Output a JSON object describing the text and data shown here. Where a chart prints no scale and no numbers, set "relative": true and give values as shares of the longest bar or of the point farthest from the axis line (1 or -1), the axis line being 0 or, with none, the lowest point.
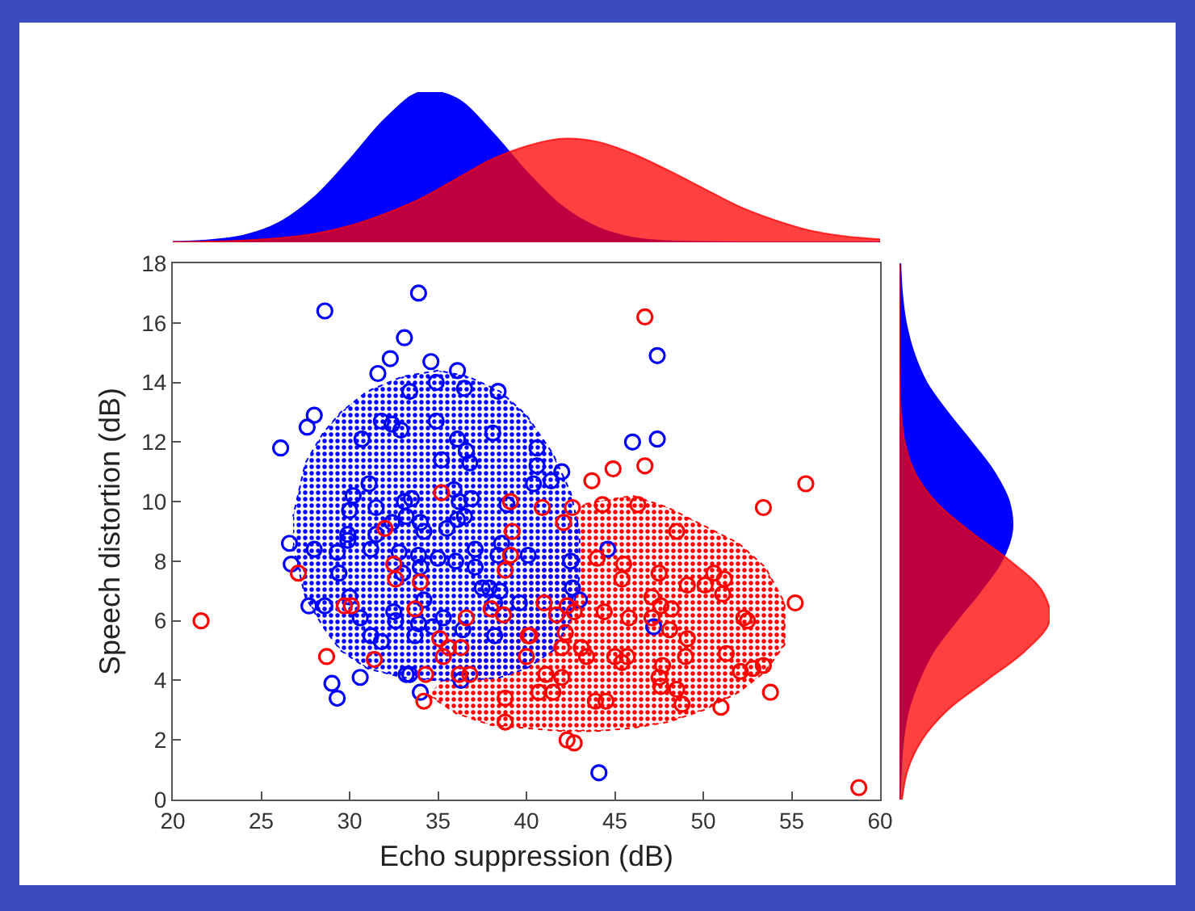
{
  "chart_data": [
    {
      "type": "area",
      "relative": true,
      "tick_labels": false,
      "xlim": [
        20,
        60
      ],
      "x": [
        20,
        22,
        24,
        26,
        28,
        30,
        32,
        34,
        36,
        38,
        40,
        42,
        44,
        46,
        48,
        50,
        52,
        54,
        56,
        58,
        60
      ],
      "series": [
        {
          "color": "#0000ff",
          "values": [
            0.003,
            0.013,
            0.045,
            0.13,
            0.3,
            0.55,
            0.82,
            1,
            0.96,
            0.74,
            0.47,
            0.24,
            0.1,
            0.03,
            0.008,
            0.002,
            0,
            0,
            0,
            0,
            0
          ]
        },
        {
          "color": "#ff0000",
          "values": [
            0.002,
            0.005,
            0.012,
            0.028,
            0.057,
            0.11,
            0.19,
            0.29,
            0.42,
            0.55,
            0.64,
            0.69,
            0.67,
            0.59,
            0.48,
            0.36,
            0.24,
            0.15,
            0.08,
            0.04,
            0.02
          ]
        }
      ]
    },
    {
      "type": "scatter",
      "xlabel": "Echo suppression (dB)",
      "ylabel": "Speech distortion (dB)",
      "xlim": [
        20,
        60
      ],
      "ylim": [
        0,
        18
      ],
      "xticks": [
        20,
        25,
        30,
        35,
        40,
        45,
        50,
        55,
        60
      ],
      "yticks": [
        0,
        2,
        4,
        6,
        8,
        10,
        12,
        14,
        16,
        18
      ],
      "marker": "circle",
      "grid": false,
      "series": [
        {
          "type": "area",
          "marker": "none",
          "color": "#ff0000",
          "x": [
            34.5,
            36,
            38,
            40,
            42,
            44,
            46,
            48,
            50,
            52,
            53.5,
            54.6,
            54.6,
            53.5,
            52,
            50,
            48,
            46,
            44,
            43.2
          ],
          "values": [
            3.5,
            2.9,
            2.5,
            2.4,
            2.3,
            2.3,
            2.4,
            2.6,
            3.0,
            3.6,
            4.3,
            5.2,
            6.6,
            7.8,
            8.6,
            9.2,
            9.8,
            10.2,
            10.0,
            9.9
          ]
        },
        {
          "type": "area",
          "marker": "none",
          "color": "#0000ff",
          "x": [
            26.8,
            27.5,
            28.5,
            29.5,
            31,
            33,
            35,
            36.7,
            38.5,
            40,
            41.5,
            42.5,
            43,
            43,
            42.5,
            41.5,
            40,
            38.5,
            36.7,
            35,
            33,
            31,
            29.5,
            28.5,
            27.5,
            26.8
          ],
          "values": [
            8.5,
            6.8,
            5.8,
            5.0,
            4.4,
            4.1,
            4.0,
            4.0,
            4.1,
            4.4,
            5.0,
            6.0,
            7.5,
            9.0,
            10.3,
            11.6,
            12.9,
            13.7,
            14.2,
            14.4,
            14.2,
            13.7,
            13.0,
            12.3,
            11.3,
            9.5
          ]
        },
        {
          "color": "#0000ff",
          "x": [
            33.9,
            28.6,
            33.1,
            32.3,
            31.6,
            34.6,
            36.1,
            34.9,
            36.5,
            33.4,
            38.4,
            28.0,
            27.6,
            31.8,
            32.4,
            32.9,
            34.9,
            38.1,
            30.7,
            26.1,
            36.1,
            36.6,
            36.8,
            35.2,
            31.1,
            35.9,
            30.2,
            33.5,
            36.9,
            36.2,
            33.1,
            30.0,
            31.5,
            33.2,
            34.0,
            35.5,
            36.1,
            36.5,
            26.6,
            29.9,
            38.9,
            40.4,
            47.4,
            40.6,
            40.6,
            42.0,
            41.4,
            46.0,
            47.4,
            26.7,
            28.0,
            27.7,
            28.6,
            29.0,
            29.3,
            29.4,
            29.3,
            29.9,
            30.0,
            30.6,
            30.6,
            31.2,
            31.8,
            31.2,
            31.5,
            32.4,
            32.8,
            33.0,
            32.5,
            32.6,
            33.2,
            33.4,
            33.7,
            33.9,
            34.2,
            34.0,
            33.9,
            34.2,
            34.0,
            34.7,
            35.3,
            35.0,
            36.4,
            36.0,
            37.1,
            37.1,
            36.3,
            38.2,
            37.5,
            37.9,
            38.5,
            38.2,
            38.4,
            39.6,
            38.6,
            40.1,
            42.5,
            44.6,
            42.6,
            43.0,
            47.2,
            44.1
          ],
          "values": [
            17.0,
            16.4,
            15.5,
            14.8,
            14.3,
            14.7,
            14.4,
            14.0,
            13.8,
            13.7,
            13.7,
            12.9,
            12.5,
            12.7,
            12.6,
            12.4,
            12.7,
            12.3,
            12.1,
            11.8,
            12.1,
            11.7,
            11.3,
            11.4,
            10.6,
            10.4,
            10.2,
            10.1,
            10.1,
            10.0,
            10.0,
            9.7,
            9.8,
            9.5,
            9.3,
            9.1,
            9.4,
            9.5,
            8.6,
            8.9,
            9.9,
            10.6,
            14.9,
            11.8,
            11.2,
            11.0,
            10.7,
            12.0,
            12.1,
            7.9,
            8.4,
            6.5,
            6.5,
            3.9,
            3.4,
            7.6,
            8.3,
            8.7,
            6.8,
            6.1,
            4.1,
            5.5,
            5.3,
            8.4,
            8.9,
            9.3,
            8.3,
            7.6,
            6.3,
            6.0,
            4.2,
            4.2,
            5.5,
            5.9,
            6.7,
            7.8,
            8.2,
            9.0,
            3.6,
            5.8,
            6.1,
            8.1,
            5.7,
            8.0,
            7.8,
            8.4,
            4.0,
            5.5,
            7.1,
            7.1,
            7.0,
            6.6,
            8.2,
            6.6,
            8.6,
            8.2,
            8.0,
            8.4,
            7.1,
            6.7,
            5.8,
            0.9
          ]
        },
        {
          "color": "#ff0000",
          "x": [
            35.2,
            39.1,
            39.2,
            32.0,
            46.7,
            46.7,
            44.9,
            43.7,
            55.8,
            53.4,
            44.3,
            46.3,
            42.6,
            40.9,
            42.1,
            48.5,
            21.6,
            27.1,
            28.7,
            29.7,
            30.1,
            31.4,
            32.5,
            32.6,
            33.7,
            34.0,
            34.3,
            34.2,
            35.1,
            35.3,
            35.6,
            36.3,
            36.6,
            36.2,
            36.8,
            38.8,
            38.8,
            38.0,
            38.7,
            38.8,
            39.1,
            40.1,
            40.0,
            44.0,
            45.5,
            47.5,
            45.4,
            49.1,
            50.6,
            50.1,
            51.2,
            51.1,
            55.2,
            41.0,
            42.3,
            42.7,
            41.7,
            44.4,
            47.1,
            47.6,
            48.2,
            45.8,
            47.1,
            48.1,
            52.3,
            52.5,
            42.2,
            49.1,
            40.2,
            42.0,
            43.1,
            43.4,
            45.0,
            45.7,
            45.4,
            47.7,
            49.0,
            51.3,
            52.1,
            52.8,
            53.4,
            53.8,
            41.1,
            42.0,
            47.5,
            47.6,
            48.5,
            40.7,
            41.5,
            43.9,
            44.5,
            48.8,
            51.0,
            42.3,
            42.7,
            58.8
          ],
          "values": [
            10.3,
            10.0,
            9.0,
            9.1,
            16.2,
            11.2,
            11.1,
            10.7,
            10.6,
            9.8,
            9.9,
            9.9,
            9.8,
            9.8,
            9.3,
            9.0,
            6.0,
            7.6,
            4.8,
            6.5,
            6.5,
            4.7,
            7.9,
            7.4,
            6.4,
            7.3,
            4.2,
            3.3,
            5.4,
            4.8,
            5.1,
            5.1,
            6.1,
            4.2,
            4.2,
            3.4,
            2.6,
            6.4,
            6.2,
            7.7,
            8.2,
            5.5,
            4.8,
            8.1,
            7.9,
            7.6,
            7.4,
            7.2,
            7.6,
            7.2,
            7.4,
            6.9,
            6.6,
            6.6,
            6.5,
            6.3,
            6.2,
            6.3,
            6.8,
            6.5,
            6.4,
            6.1,
            6.1,
            5.7,
            6.1,
            6.0,
            5.6,
            5.4,
            5.5,
            5.1,
            5.1,
            4.8,
            4.8,
            4.8,
            4.6,
            4.5,
            4.8,
            4.9,
            4.3,
            4.4,
            4.5,
            3.6,
            4.2,
            4.1,
            4.1,
            3.8,
            3.7,
            3.6,
            3.6,
            3.3,
            3.3,
            3.2,
            3.1,
            2.0,
            1.9,
            0.4
          ]
        }
      ]
    },
    {
      "type": "area",
      "relative": true,
      "tick_labels": false,
      "orientation": "horizontal",
      "ylim": [
        0,
        18
      ],
      "x": [
        0,
        1,
        2,
        3,
        4,
        5,
        6,
        7,
        8,
        9,
        10,
        11,
        12,
        13,
        14,
        15,
        16,
        17,
        18
      ],
      "series": [
        {
          "color": "#0000ff",
          "values": [
            0.003,
            0.01,
            0.025,
            0.06,
            0.13,
            0.23,
            0.38,
            0.54,
            0.68,
            0.75,
            0.73,
            0.63,
            0.48,
            0.32,
            0.18,
            0.095,
            0.043,
            0.017,
            0.006
          ]
        },
        {
          "color": "#ff0000",
          "values": [
            0.017,
            0.055,
            0.15,
            0.32,
            0.58,
            0.84,
            1,
            0.95,
            0.74,
            0.47,
            0.24,
            0.1,
            0.035,
            0.01,
            0.002,
            0,
            0,
            0,
            0
          ]
        }
      ]
    }
  ]
}
